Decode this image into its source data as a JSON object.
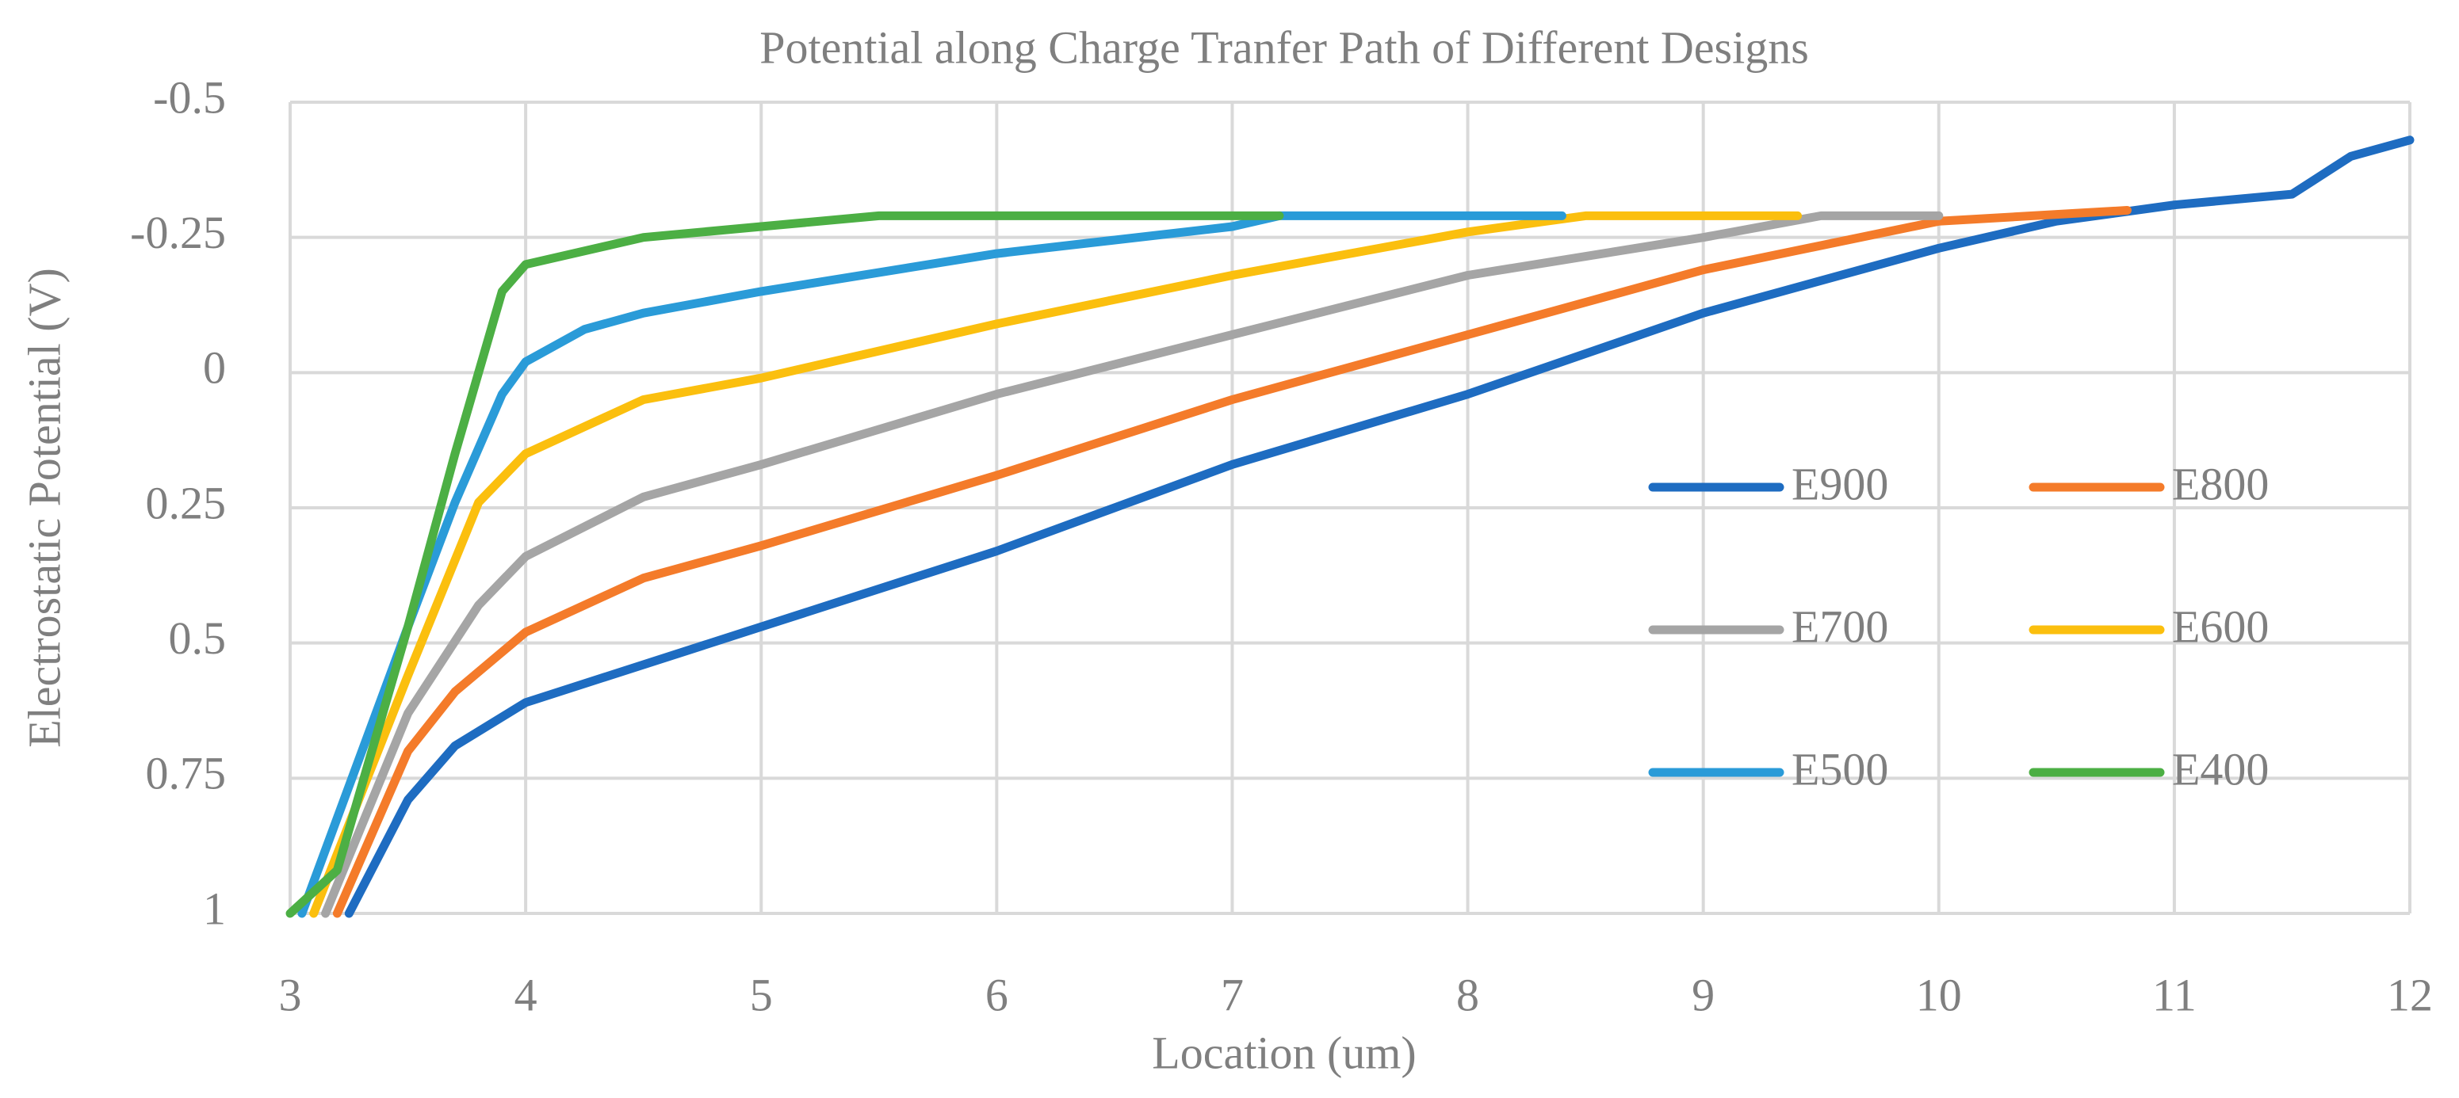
{
  "chart_data": {
    "type": "line",
    "title": "Potential along Charge Tranfer Path of Different Designs",
    "xlabel": "Location (um)",
    "ylabel": "Electrostatic Potential (V)",
    "xlim": [
      3,
      12
    ],
    "xticks": [
      3,
      4,
      5,
      6,
      7,
      8,
      9,
      10,
      11,
      12
    ],
    "ylim": [
      1,
      -0.5
    ],
    "yticks": [
      1,
      0.75,
      0.5,
      0.25,
      0,
      -0.25,
      -0.5
    ],
    "grid": true,
    "legend": "right",
    "series": [
      {
        "name": "E900",
        "color": "#1e6cc1",
        "x": [
          3.25,
          3.5,
          3.7,
          4,
          5,
          6,
          7,
          8,
          9,
          10,
          10.5,
          11,
          11.5,
          11.75,
          12
        ],
        "values": [
          1,
          0.79,
          0.69,
          0.61,
          0.47,
          0.33,
          0.17,
          0.04,
          -0.11,
          -0.23,
          -0.28,
          -0.31,
          -0.33,
          -0.4,
          -0.43
        ]
      },
      {
        "name": "E800",
        "color": "#f47b2a",
        "x": [
          3.2,
          3.5,
          3.7,
          4,
          4.5,
          5,
          6,
          7,
          8,
          9,
          10,
          10.8
        ],
        "values": [
          1,
          0.7,
          0.59,
          0.48,
          0.38,
          0.32,
          0.19,
          0.05,
          -0.07,
          -0.19,
          -0.28,
          -0.3
        ]
      },
      {
        "name": "E700",
        "color": "#a5a5a5",
        "x": [
          3.15,
          3.5,
          3.8,
          4,
          4.5,
          5,
          6,
          7,
          8,
          9,
          9.5,
          10
        ],
        "values": [
          1,
          0.63,
          0.43,
          0.34,
          0.23,
          0.17,
          0.04,
          -0.07,
          -0.18,
          -0.25,
          -0.29,
          -0.29
        ]
      },
      {
        "name": "E600",
        "color": "#fbbf0e",
        "x": [
          3.1,
          3.5,
          3.8,
          4,
          4.5,
          5,
          6,
          7,
          8,
          8.5,
          9.4
        ],
        "values": [
          1,
          0.56,
          0.24,
          0.15,
          0.05,
          0.01,
          -0.09,
          -0.18,
          -0.26,
          -0.29,
          -0.29
        ]
      },
      {
        "name": "E500",
        "color": "#2a9bd8",
        "x": [
          3.05,
          3.5,
          3.7,
          3.9,
          4,
          4.25,
          4.5,
          5,
          6,
          7,
          7.2,
          8.4
        ],
        "values": [
          1,
          0.47,
          0.24,
          0.04,
          -0.02,
          -0.08,
          -0.11,
          -0.15,
          -0.22,
          -0.27,
          -0.29,
          -0.29
        ]
      },
      {
        "name": "E400",
        "color": "#4caf44",
        "x": [
          3,
          3.2,
          3.5,
          3.7,
          3.9,
          4,
          4.5,
          5,
          5.5,
          7.2
        ],
        "values": [
          1,
          0.92,
          0.47,
          0.15,
          -0.15,
          -0.2,
          -0.25,
          -0.27,
          -0.29,
          -0.29
        ]
      }
    ]
  }
}
